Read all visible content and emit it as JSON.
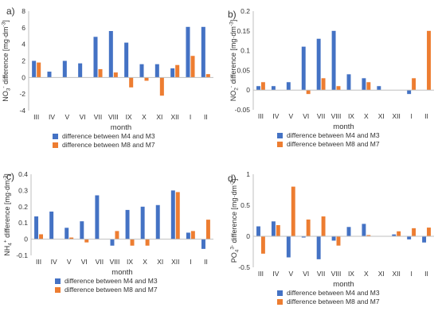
{
  "colors": {
    "series1": "#4472C4",
    "series2": "#ED7D31",
    "axis": "#BFBFBF",
    "text": "#333333"
  },
  "chart_data": [
    {
      "panel_label": "a)",
      "type": "bar",
      "categories": [
        "III",
        "IV",
        "V",
        "VI",
        "VII",
        "VIII",
        "IX",
        "X",
        "XI",
        "XII",
        "I",
        "II"
      ],
      "series": [
        {
          "name": "difference between M4 and M3",
          "values": [
            2.0,
            0.7,
            2.0,
            1.7,
            4.9,
            5.6,
            4.2,
            1.6,
            1.6,
            1.1,
            6.1,
            6.1
          ]
        },
        {
          "name": "difference between M8 and M7",
          "values": [
            1.8,
            0.0,
            0.0,
            0.0,
            1.0,
            0.6,
            -1.2,
            -0.4,
            -2.2,
            1.5,
            2.6,
            0.4
          ]
        }
      ],
      "yticks": [
        "8",
        "6",
        "4",
        "2",
        "0",
        "-2",
        "-4"
      ],
      "ylim": [
        -4,
        8
      ],
      "ylabel_main": "NO",
      "ylabel_sub": "3",
      "ylabel_sup": "-",
      "ylabel_rest": " difference [mg·dm",
      "ylabel_exp": "-3",
      "ylabel_end": "]",
      "xlabel": "month",
      "legend": "bottom",
      "grid": false
    },
    {
      "panel_label": "b)",
      "type": "bar",
      "categories": [
        "III",
        "IV",
        "V",
        "VI",
        "VII",
        "VIII",
        "IX",
        "X",
        "XI",
        "XII",
        "I",
        "II"
      ],
      "series": [
        {
          "name": "difference between M4 and M3",
          "values": [
            0.01,
            0.01,
            0.02,
            0.11,
            0.13,
            0.15,
            0.04,
            0.03,
            0.01,
            0.0,
            -0.01,
            0.0
          ]
        },
        {
          "name": "difference between M8 and M7",
          "values": [
            0.02,
            0.0,
            0.0,
            -0.01,
            0.03,
            0.01,
            0.0,
            0.02,
            0.0,
            0.0,
            0.03,
            0.15
          ]
        }
      ],
      "yticks": [
        "0.2",
        "0.15",
        "0.1",
        "0.05",
        "0",
        "-0.05"
      ],
      "ylim": [
        -0.05,
        0.2
      ],
      "ylabel_main": "NO",
      "ylabel_sub": "2",
      "ylabel_sup": "-",
      "ylabel_rest": " difference [mg·dm",
      "ylabel_exp": "-3",
      "ylabel_end": "]",
      "xlabel": "month",
      "legend": "bottom",
      "grid": false
    },
    {
      "panel_label": "c)",
      "type": "bar",
      "categories": [
        "III",
        "IV",
        "V",
        "VI",
        "VII",
        "VIII",
        "IX",
        "X",
        "XI",
        "XII",
        "I",
        "II"
      ],
      "series": [
        {
          "name": "difference between M4 and M3",
          "values": [
            0.14,
            0.17,
            0.07,
            0.11,
            0.27,
            -0.04,
            0.18,
            0.2,
            0.21,
            0.3,
            0.04,
            -0.06
          ]
        },
        {
          "name": "difference between M8 and M7",
          "values": [
            0.03,
            0.0,
            0.01,
            -0.02,
            0.0,
            0.05,
            -0.04,
            -0.04,
            0.0,
            0.29,
            0.05,
            0.12
          ]
        }
      ],
      "yticks": [
        "0.4",
        "0.3",
        "0.2",
        "0.1",
        "0",
        "-0.1"
      ],
      "ylim": [
        -0.1,
        0.4
      ],
      "ylabel_main": "NH",
      "ylabel_sub": "4",
      "ylabel_sup": "+",
      "ylabel_rest": " difference [mg·dm",
      "ylabel_exp": "-3",
      "ylabel_end": "]",
      "xlabel": "month",
      "legend": "bottom",
      "grid": false
    },
    {
      "panel_label": "d)",
      "type": "bar",
      "categories": [
        "III",
        "IV",
        "V",
        "VI",
        "VII",
        "VIII",
        "IX",
        "X",
        "XI",
        "XII",
        "I",
        "II"
      ],
      "series": [
        {
          "name": "difference between M4 and M3",
          "values": [
            0.16,
            0.24,
            -0.34,
            -0.02,
            -0.37,
            -0.07,
            0.15,
            0.2,
            0.0,
            0.03,
            -0.05,
            -0.1
          ]
        },
        {
          "name": "difference between M8 and M7",
          "values": [
            -0.28,
            0.18,
            0.8,
            0.27,
            0.32,
            -0.15,
            0.0,
            0.02,
            0.0,
            0.08,
            0.13,
            0.14
          ]
        }
      ],
      "yticks": [
        "1",
        "0.5",
        "0",
        "-0.5"
      ],
      "ylim": [
        -0.5,
        1.0
      ],
      "ylabel_main": "PO",
      "ylabel_sub": "4",
      "ylabel_sup": "3-",
      "ylabel_rest": " difference [mg·dm",
      "ylabel_exp": "-3",
      "ylabel_end": "]",
      "xlabel": "month",
      "legend": "bottom",
      "grid": false
    }
  ]
}
